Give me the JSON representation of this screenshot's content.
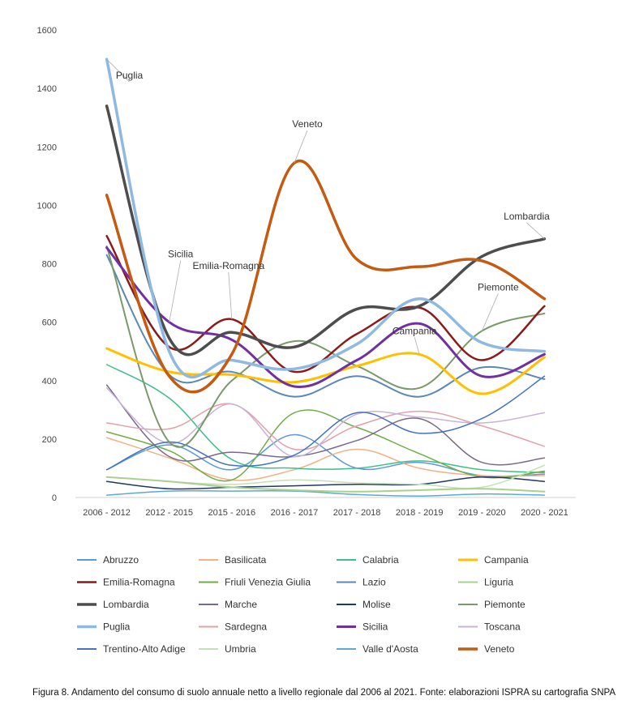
{
  "caption": "Figura 8. Andamento del consumo di suolo annuale netto a livello regionale dal 2006 al 2021. Fonte: elaborazioni ISPRA su cartografia SNPA",
  "chart_data": {
    "type": "line",
    "title": "",
    "xlabel": "",
    "ylabel": "",
    "ylim": [
      0,
      1600
    ],
    "yticks": [
      0,
      200,
      400,
      600,
      800,
      1000,
      1200,
      1400,
      1600
    ],
    "grid": false,
    "legend_position": "bottom",
    "categories": [
      "2006 - 2012",
      "2012 - 2015",
      "2015 - 2016",
      "2016 - 2017",
      "2017 - 2018",
      "2018 - 2019",
      "2019 - 2020",
      "2020 - 2021"
    ],
    "series": [
      {
        "name": "Abruzzo",
        "color": "#5b9bd5",
        "width": 1.5,
        "values": [
          95,
          180,
          95,
          215,
          100,
          120,
          75,
          80
        ]
      },
      {
        "name": "Basilicata",
        "color": "#f4b183",
        "width": 1.5,
        "values": [
          205,
          135,
          60,
          95,
          165,
          100,
          75,
          75
        ]
      },
      {
        "name": "Calabria",
        "color": "#3cbf8a",
        "width": 1.5,
        "values": [
          455,
          340,
          130,
          100,
          100,
          125,
          95,
          85
        ]
      },
      {
        "name": "Campania",
        "color": "#ffc000",
        "width": 3,
        "values": [
          510,
          430,
          420,
          395,
          450,
          490,
          355,
          480
        ]
      },
      {
        "name": "Emilia-Romagna",
        "color": "#8b1a1a",
        "width": 2.5,
        "values": [
          895,
          515,
          610,
          430,
          560,
          650,
          470,
          655
        ]
      },
      {
        "name": "Friuli Venezia Giulia",
        "color": "#70ad47",
        "width": 1.5,
        "values": [
          225,
          160,
          60,
          290,
          240,
          150,
          70,
          90
        ]
      },
      {
        "name": "Lazio",
        "color": "#5d87b5",
        "width": 2,
        "values": [
          830,
          420,
          430,
          345,
          415,
          345,
          445,
          405
        ]
      },
      {
        "name": "Liguria",
        "color": "#a9d18e",
        "width": 2,
        "values": [
          70,
          55,
          35,
          25,
          20,
          25,
          30,
          20
        ]
      },
      {
        "name": "Lombardia",
        "color": "#4d4d4d",
        "width": 3.5,
        "values": [
          1340,
          545,
          565,
          515,
          645,
          655,
          825,
          885
        ]
      },
      {
        "name": "Marche",
        "color": "#7a6a8a",
        "width": 1.5,
        "values": [
          385,
          140,
          155,
          140,
          195,
          270,
          120,
          135
        ]
      },
      {
        "name": "Molise",
        "color": "#1f3864",
        "width": 1.5,
        "values": [
          55,
          30,
          35,
          40,
          45,
          45,
          70,
          55
        ]
      },
      {
        "name": "Piemonte",
        "color": "#7b9a6b",
        "width": 2,
        "values": [
          860,
          190,
          400,
          535,
          450,
          375,
          570,
          630
        ]
      },
      {
        "name": "Puglia",
        "color": "#8fb9e1",
        "width": 3.5,
        "values": [
          1500,
          500,
          470,
          440,
          525,
          680,
          530,
          500
        ]
      },
      {
        "name": "Sardegna",
        "color": "#e3a0a8",
        "width": 1.5,
        "values": [
          255,
          235,
          320,
          165,
          245,
          295,
          245,
          175
        ]
      },
      {
        "name": "Sicilia",
        "color": "#7030a0",
        "width": 3,
        "values": [
          855,
          600,
          540,
          380,
          470,
          595,
          415,
          490
        ]
      },
      {
        "name": "Toscana",
        "color": "#c9b3d6",
        "width": 1.5,
        "values": [
          375,
          185,
          320,
          140,
          285,
          275,
          255,
          290
        ]
      },
      {
        "name": "Trentino-Alto Adige",
        "color": "#4472c4",
        "width": 1.5,
        "values": [
          95,
          190,
          110,
          145,
          290,
          220,
          270,
          415
        ]
      },
      {
        "name": "Umbria",
        "color": "#c5e0b4",
        "width": 1.5,
        "values": [
          70,
          55,
          45,
          60,
          50,
          45,
          35,
          110
        ]
      },
      {
        "name": "Valle d'Aosta",
        "color": "#5fa8d3",
        "width": 1.5,
        "values": [
          8,
          22,
          22,
          22,
          10,
          5,
          12,
          8
        ]
      },
      {
        "name": "Veneto",
        "color": "#c55a11",
        "width": 3.5,
        "values": [
          1035,
          415,
          490,
          1145,
          815,
          790,
          810,
          680
        ]
      }
    ],
    "annotations": [
      {
        "text": "Puglia",
        "series": "Puglia",
        "point": 0
      },
      {
        "text": "Sicilia",
        "series": "Sicilia",
        "point": 1
      },
      {
        "text": "Emilia-Romagna",
        "series": "Emilia-Romagna",
        "point": 2
      },
      {
        "text": "Veneto",
        "series": "Veneto",
        "point": 3
      },
      {
        "text": "Campania",
        "series": "Campania",
        "point": 5
      },
      {
        "text": "Piemonte",
        "series": "Piemonte",
        "point": 6
      },
      {
        "text": "Lombardia",
        "series": "Lombardia",
        "point": 7
      }
    ]
  }
}
